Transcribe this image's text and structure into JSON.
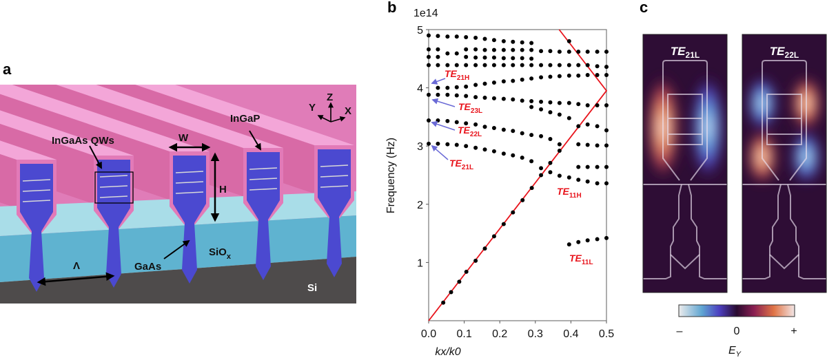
{
  "panel_a": {
    "label": "a",
    "annotations": {
      "qws": "InGaAs QWs",
      "width": "W",
      "cladding": "InGaP",
      "height": "H",
      "period": "Λ",
      "core": "GaAs",
      "oxide": "SiO",
      "oxide_sub": "x",
      "substrate": "Si"
    },
    "axes": {
      "z": "Z",
      "y": "Y",
      "x": "X"
    },
    "colors": {
      "ingap": "#e27ab8",
      "gaas": "#4b49d0",
      "siox": "#5fb3d0",
      "si": "#4e4b4b",
      "qw": "#d8d8d8"
    }
  },
  "panel_b": {
    "label": "b",
    "scale_label": "1e14",
    "mode_labels": [
      {
        "main": "TE",
        "sub": "21H"
      },
      {
        "main": "TE",
        "sub": "23L"
      },
      {
        "main": "TE",
        "sub": "22L"
      },
      {
        "main": "TE",
        "sub": "21L"
      },
      {
        "main": "TE",
        "sub": "11H"
      },
      {
        "main": "TE",
        "sub": "11L"
      }
    ],
    "arrow_color": "#6a6ad6"
  },
  "chart_data": {
    "type": "scatter",
    "title": "",
    "xlabel": "kx/k0",
    "ylabel": "Frequency (Hz)",
    "y_multiplier": "1e14",
    "xlim": [
      0,
      0.5
    ],
    "ylim": [
      0,
      5
    ],
    "x_ticks": [
      "0.0",
      "0.1",
      "0.2",
      "0.3",
      "0.4",
      "0.5"
    ],
    "y_ticks": [
      "1",
      "2",
      "3",
      "4",
      "5"
    ],
    "grid": false,
    "marker_color": "#000000",
    "light_line": {
      "color": "#e8141c",
      "x": [
        0,
        0.5,
        0.367
      ],
      "y": [
        0,
        3.95,
        5.0
      ]
    },
    "series": [
      {
        "x": [
          0,
          0.026,
          0.053,
          0.079,
          0.105,
          0.132,
          0.158,
          0.184,
          0.211,
          0.237,
          0.263,
          0.289,
          0.395
        ],
        "y": [
          4.9,
          4.89,
          4.88,
          4.88,
          4.87,
          4.86,
          4.84,
          4.82,
          4.8,
          4.79,
          4.78,
          4.77,
          4.8
        ]
      },
      {
        "x": [
          0,
          0.026,
          0.053,
          0.079,
          0.105,
          0.132,
          0.158,
          0.184,
          0.211,
          0.237,
          0.263,
          0.289,
          0.316,
          0.342,
          0.368,
          0.395,
          0.421,
          0.447,
          0.474,
          0.5
        ],
        "y": [
          4.66,
          4.66,
          4.59,
          4.59,
          4.66,
          4.66,
          4.65,
          4.65,
          4.65,
          4.65,
          4.65,
          4.65,
          4.63,
          4.63,
          4.62,
          4.62,
          4.62,
          4.62,
          4.62,
          4.62
        ]
      },
      {
        "x": [
          0,
          0.026,
          0.105,
          0.132,
          0.158,
          0.184,
          0.211,
          0.237,
          0.263,
          0.289
        ],
        "y": [
          4.53,
          4.53,
          4.53,
          4.52,
          4.52,
          4.52,
          4.51,
          4.51,
          4.51,
          4.5
        ]
      },
      {
        "x": [
          0,
          0.026,
          0.053,
          0.079,
          0.105,
          0.132,
          0.158,
          0.184,
          0.211,
          0.237,
          0.263,
          0.289,
          0.316,
          0.342,
          0.368,
          0.395,
          0.421,
          0.447,
          0.474,
          0.5
        ],
        "y": [
          4.39,
          4.39,
          4.39,
          4.39,
          4.39,
          4.39,
          4.39,
          4.39,
          4.39,
          4.39,
          4.39,
          4.39,
          4.39,
          4.39,
          4.39,
          4.39,
          4.39,
          4.39,
          4.37,
          4.36
        ]
      },
      {
        "x": [
          0.026,
          0.053,
          0.079,
          0.105,
          0.132,
          0.158,
          0.184,
          0.211,
          0.237,
          0.263,
          0.289,
          0.316,
          0.342,
          0.368,
          0.395,
          0.421,
          0.447,
          0.474,
          0.5
        ],
        "y": [
          4.0,
          4.0,
          4.01,
          4.02,
          4.05,
          4.07,
          4.09,
          4.11,
          4.12,
          4.14,
          4.16,
          4.18,
          4.19,
          4.2,
          4.21,
          4.21,
          4.22,
          4.22,
          4.22
        ]
      },
      {
        "x": [
          0,
          0.026,
          0.053,
          0.079,
          0.105,
          0.132,
          0.158,
          0.184,
          0.211,
          0.237,
          0.263,
          0.289,
          0.316,
          0.342,
          0.368,
          0.395,
          0.421,
          0.447,
          0.474,
          0.5
        ],
        "y": [
          3.88,
          3.88,
          3.88,
          3.87,
          3.86,
          3.84,
          3.83,
          3.82,
          3.81,
          3.8,
          3.78,
          3.77,
          3.76,
          3.75,
          3.74,
          3.74,
          3.72,
          3.7,
          3.7,
          3.7
        ]
      },
      {
        "x": [
          0.289,
          0.316,
          0.342,
          0.368,
          0.395,
          0.421,
          0.447,
          0.474,
          0.5
        ],
        "y": [
          3.67,
          3.63,
          3.58,
          3.54,
          3.48,
          3.34,
          3.37,
          3.34,
          3.27
        ]
      },
      {
        "x": [
          0,
          0.026,
          0.053,
          0.079,
          0.105,
          0.132,
          0.158,
          0.184,
          0.211,
          0.237,
          0.263,
          0.289,
          0.316,
          0.342,
          0.368,
          0.421,
          0.447,
          0.474,
          0.5
        ],
        "y": [
          3.44,
          3.44,
          3.43,
          3.41,
          3.39,
          3.37,
          3.33,
          3.31,
          3.28,
          3.26,
          3.22,
          3.19,
          3.17,
          3.12,
          3.03,
          3.03,
          3.02,
          3.01,
          3.01
        ]
      },
      {
        "x": [
          0,
          0.026,
          0.053,
          0.079,
          0.105,
          0.132,
          0.158,
          0.184,
          0.211,
          0.237,
          0.263,
          0.289,
          0.316,
          0.342,
          0.368,
          0.421,
          0.447,
          0.474,
          0.5
        ],
        "y": [
          3.04,
          3.04,
          3.03,
          3.02,
          3.0,
          2.97,
          2.94,
          2.91,
          2.87,
          2.84,
          2.8,
          2.74,
          2.62,
          2.71,
          2.92,
          2.64,
          2.64,
          2.64,
          2.64
        ]
      },
      {
        "name": "",
        "x": [
          0.041,
          0.063,
          0.086,
          0.106,
          0.132,
          0.158,
          0.184,
          0.211,
          0.237,
          0.264,
          0.29,
          0.316,
          0.342,
          0.368,
          0.395,
          0.421,
          0.447,
          0.474,
          0.5
        ],
        "y": [
          0.31,
          0.49,
          0.67,
          0.84,
          1.03,
          1.24,
          1.45,
          1.66,
          1.86,
          2.07,
          2.28,
          2.5,
          2.55,
          2.49,
          2.46,
          2.42,
          2.39,
          2.36,
          2.36
        ]
      },
      {
        "x": [
          0.395,
          0.421,
          0.447,
          0.474,
          0.5
        ],
        "y": [
          1.31,
          1.35,
          1.38,
          1.4,
          1.42
        ]
      }
    ]
  },
  "panel_c": {
    "label": "c",
    "maps": [
      {
        "main": "TE",
        "sub": "21L"
      },
      {
        "main": "TE",
        "sub": "22L"
      }
    ],
    "colorbar": {
      "min_label": "–",
      "mid_label": "0",
      "max_label": "+",
      "title": "E",
      "title_sub": "Y",
      "colors": [
        "#ececec",
        "#5fa5d2",
        "#4c3fc0",
        "#2a0b30",
        "#8a1f52",
        "#e07446",
        "#f2e6e6"
      ]
    },
    "background": "#2e0d35"
  }
}
